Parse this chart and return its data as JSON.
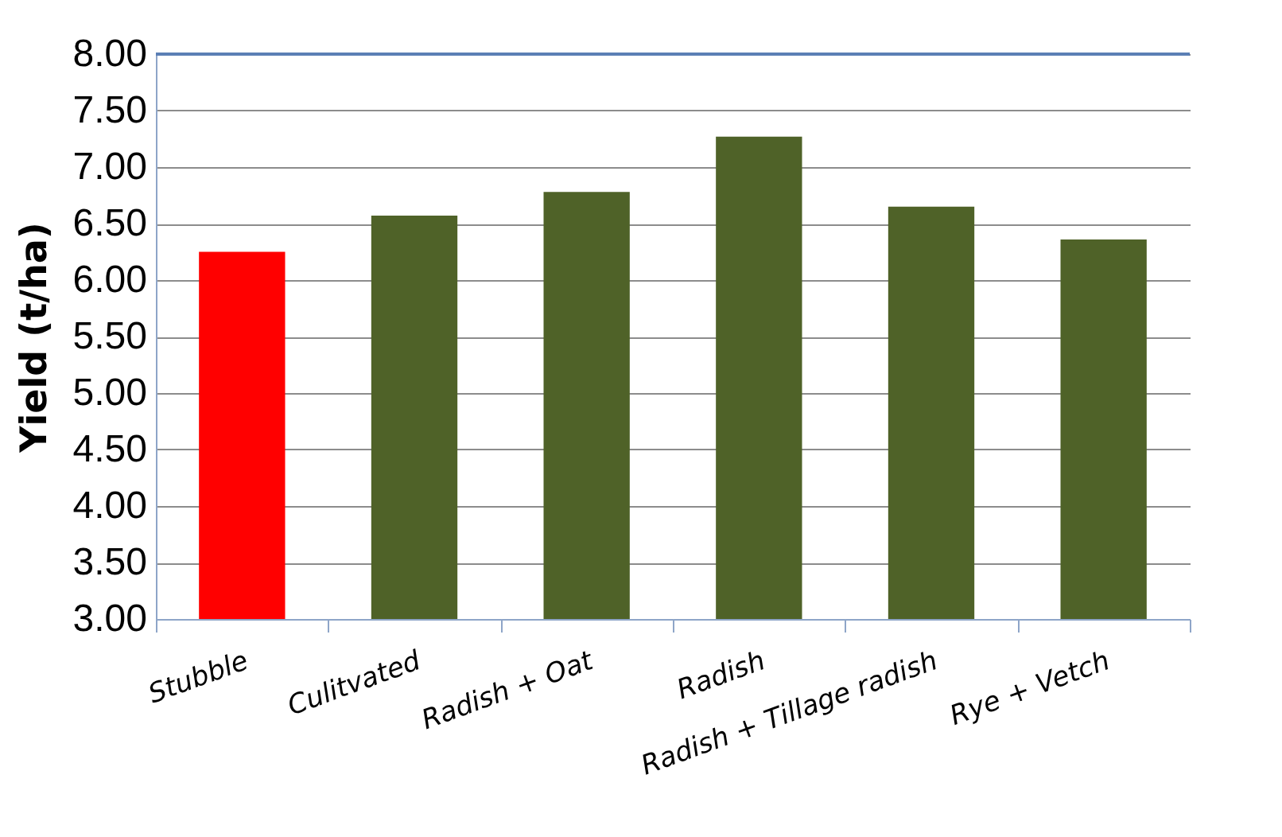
{
  "chart_data": {
    "type": "bar",
    "ylabel": "Yield  (t/ha)",
    "categories": [
      "Stubble",
      "Culitvated",
      "Radish + Oat",
      "Radish",
      "Radish + Tillage radish",
      "Rye + Vetch"
    ],
    "values": [
      6.25,
      6.57,
      6.78,
      7.27,
      6.65,
      6.36
    ],
    "colors": [
      "#ff0000",
      "#4f6228",
      "#4f6228",
      "#4f6228",
      "#4f6228",
      "#4f6228"
    ],
    "ylim": [
      3,
      8
    ],
    "yticks": [
      {
        "value": 3,
        "label": "3.00"
      },
      {
        "value": 3.5,
        "label": "3.50"
      },
      {
        "value": 4,
        "label": "4.00"
      },
      {
        "value": 4.5,
        "label": "4.50"
      },
      {
        "value": 5,
        "label": "5.00"
      },
      {
        "value": 5.5,
        "label": "5.50"
      },
      {
        "value": 6,
        "label": "6.00"
      },
      {
        "value": 6.5,
        "label": "6.50"
      },
      {
        "value": 7,
        "label": "7.00"
      },
      {
        "value": 7.5,
        "label": "7.50"
      },
      {
        "value": 8,
        "label": "8.00"
      }
    ],
    "grid": "y"
  }
}
